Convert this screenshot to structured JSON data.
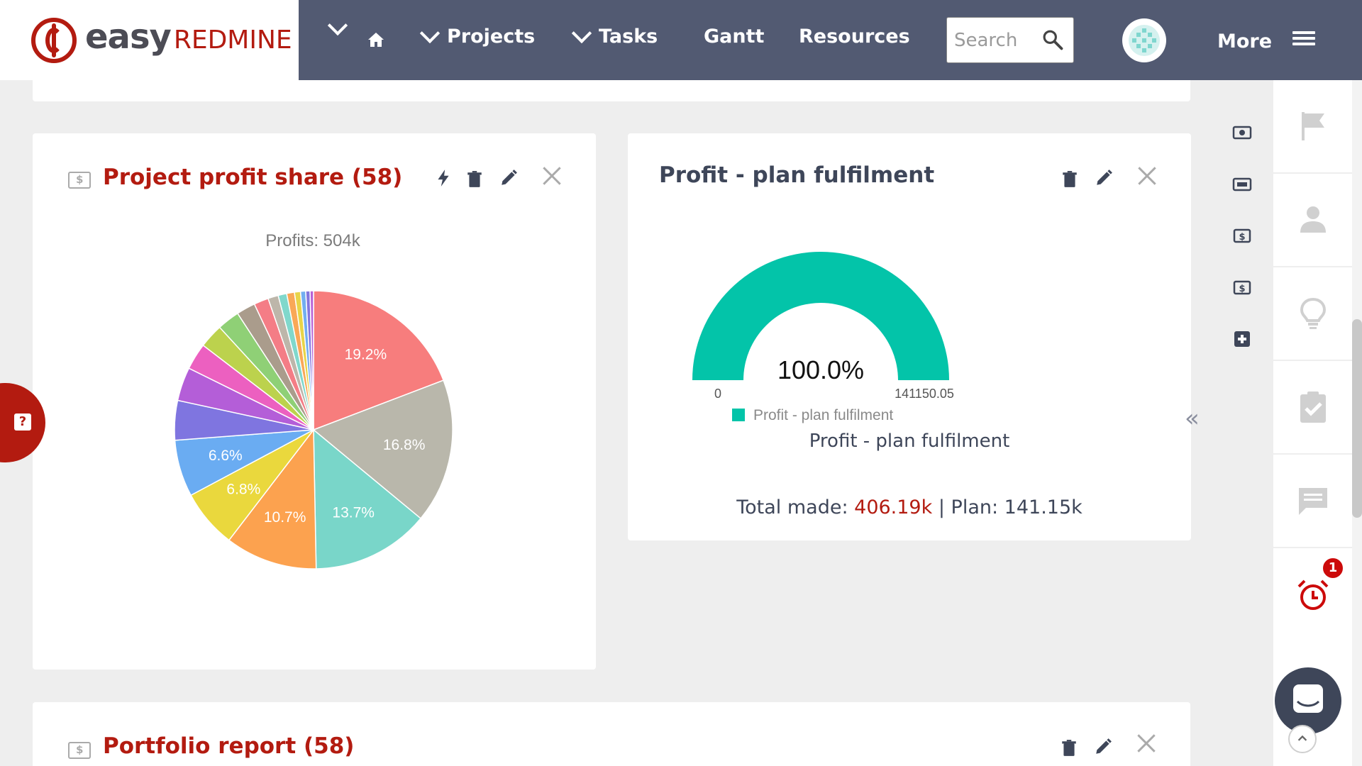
{
  "brand": {
    "easy": "easy",
    "redmine": "REDMINE",
    "color": "#b31b10"
  },
  "nav": {
    "projects": "Projects",
    "tasks": "Tasks",
    "gantt": "Gantt",
    "resources": "Resources",
    "search_placeholder": "Search",
    "more": "More"
  },
  "panels": {
    "profit_share": {
      "title": "Project profit share (58)",
      "chart_title": "Profits: 504k"
    },
    "plan_fulfilment": {
      "title": "Profit - plan fulfilment",
      "gauge_value": "100.0%",
      "gauge_min": "0",
      "gauge_max": "141150.05",
      "legend": "Profit - plan fulfilment",
      "caption": "Profit - plan fulfilment",
      "total_label": "Total made:",
      "total_value": "406.19k",
      "separator": "|",
      "plan_label": "Plan: 141.15k"
    },
    "portfolio": {
      "title": "Portfolio report (58)"
    }
  },
  "notifications": {
    "badge": "1"
  },
  "chart_data": [
    {
      "type": "pie",
      "title": "Profits: 504k",
      "categories": [
        "",
        "",
        "",
        "",
        "",
        "",
        "",
        "",
        "",
        "",
        "",
        "",
        "",
        "",
        "",
        "",
        "",
        "",
        "",
        ""
      ],
      "values": [
        19.2,
        16.8,
        13.7,
        10.7,
        6.8,
        6.6,
        4.6,
        3.9,
        3.1,
        2.8,
        2.6,
        2.2,
        1.7,
        1.2,
        1.0,
        0.9,
        0.7,
        0.6,
        0.5,
        0.4
      ],
      "labels": [
        "19.2%",
        "16.8%",
        "13.7%",
        "10.7%",
        "6.8%",
        "6.6%",
        "",
        "",
        "",
        "",
        "",
        "",
        "",
        "",
        "",
        "",
        "",
        "",
        "",
        ""
      ],
      "colors": [
        "#f77d7d",
        "#b9b7ab",
        "#79d6c9",
        "#fca24f",
        "#ead83d",
        "#6aacf2",
        "#7f75e0",
        "#b45ed8",
        "#ec60c0",
        "#bcd24d",
        "#8fd076",
        "#aa9c8c",
        "#f47d86",
        "#bdb6aa",
        "#80d8cc",
        "#f9a857",
        "#e8d448",
        "#72aef0",
        "#8376de",
        "#b862d6"
      ]
    },
    {
      "type": "gauge",
      "title": "Profit - plan fulfilment",
      "value": 100.0,
      "min": 0,
      "max": 141150.05,
      "legend": [
        "Profit - plan fulfilment"
      ],
      "color": "#03c4a9"
    }
  ]
}
